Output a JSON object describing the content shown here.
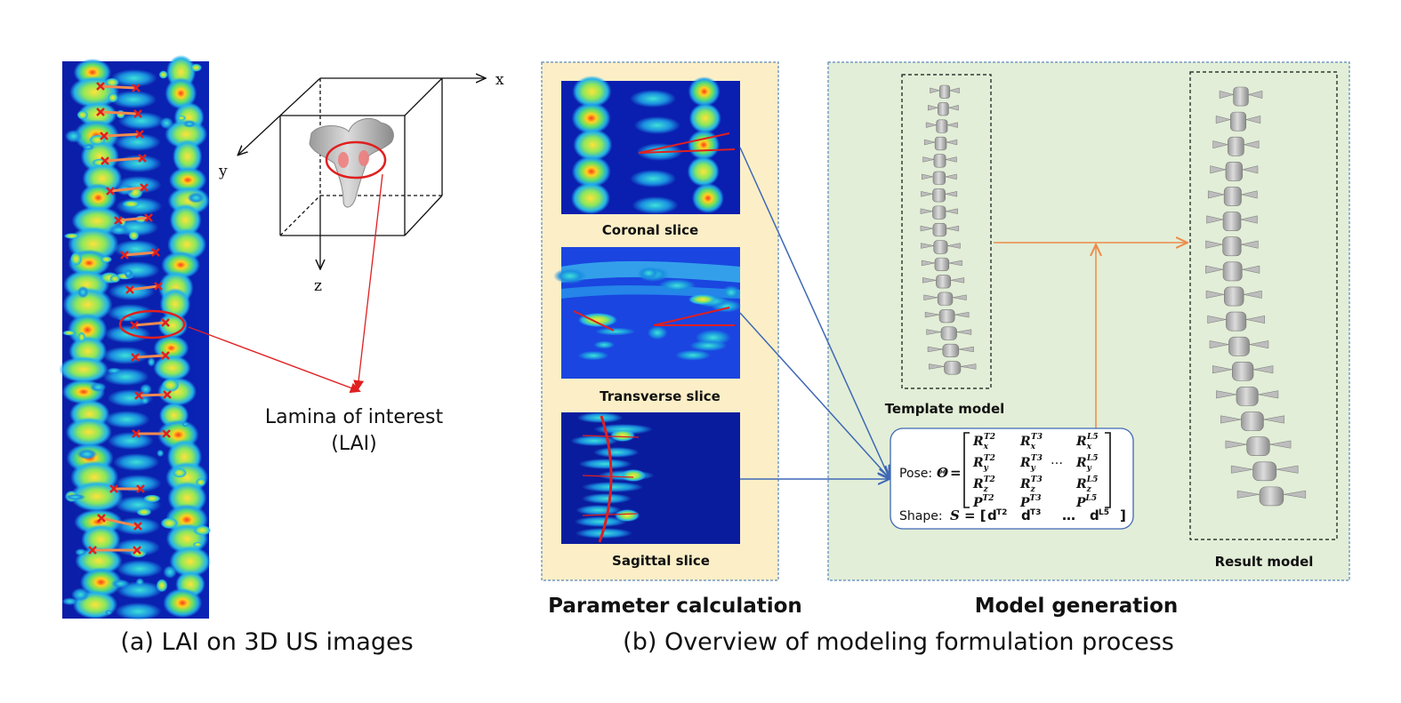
{
  "panel_a": {
    "caption": "(a)  LAI on 3D US images",
    "axis_x": "x",
    "axis_y": "y",
    "axis_z": "z",
    "lai_label_line1": "Lamina of interest",
    "lai_label_line2": "(LAI)"
  },
  "panel_b": {
    "caption": "(b) Overview of modeling formulation process",
    "param_title": "Parameter calculation",
    "model_title": "Model generation",
    "slices": {
      "coronal": "Coronal slice",
      "transverse": "Transverse slice",
      "sagittal": "Sagittal slice"
    },
    "template_label": "Template model",
    "result_label": "Result model",
    "formula": {
      "pose_label": "Pose:",
      "pose_symbol": "Θ",
      "equals": "=",
      "shape_label": "Shape:",
      "shape_symbol": "S",
      "rows": [
        [
          "R",
          "x",
          "T2",
          "R",
          "x",
          "T3",
          "R",
          "x",
          "L5"
        ],
        [
          "R",
          "y",
          "T2",
          "R",
          "y",
          "T3",
          "R",
          "y",
          "L5"
        ],
        [
          "R",
          "z",
          "T2",
          "R",
          "z",
          "T3",
          "R",
          "z",
          "L5"
        ],
        [
          "P",
          "",
          "T2",
          "P",
          "",
          "T3",
          "P",
          "",
          "L5"
        ]
      ],
      "ellipsis": "…",
      "shape_terms": [
        "d",
        "T2",
        "d",
        "T3",
        "…",
        "d",
        "L5"
      ]
    }
  },
  "colors": {
    "param_bg": "#fcefc7",
    "model_bg": "#e2eed7",
    "box_border": "#5b86b8",
    "blue_arrow": "#3f68b5",
    "orange_arrow": "#ec8a4a",
    "red": "#e01f1f",
    "us_bg": "#0a1a9c"
  }
}
